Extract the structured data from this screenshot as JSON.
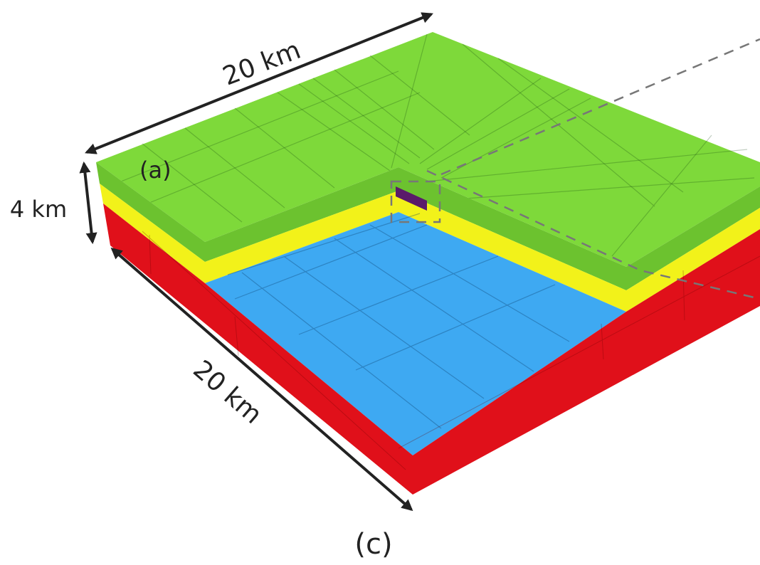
{
  "labels": {
    "top_width": "20 km",
    "depth": "4 km",
    "front_width": "20 km",
    "panel_a": "(a)",
    "panel_c": "(c)"
  }
}
